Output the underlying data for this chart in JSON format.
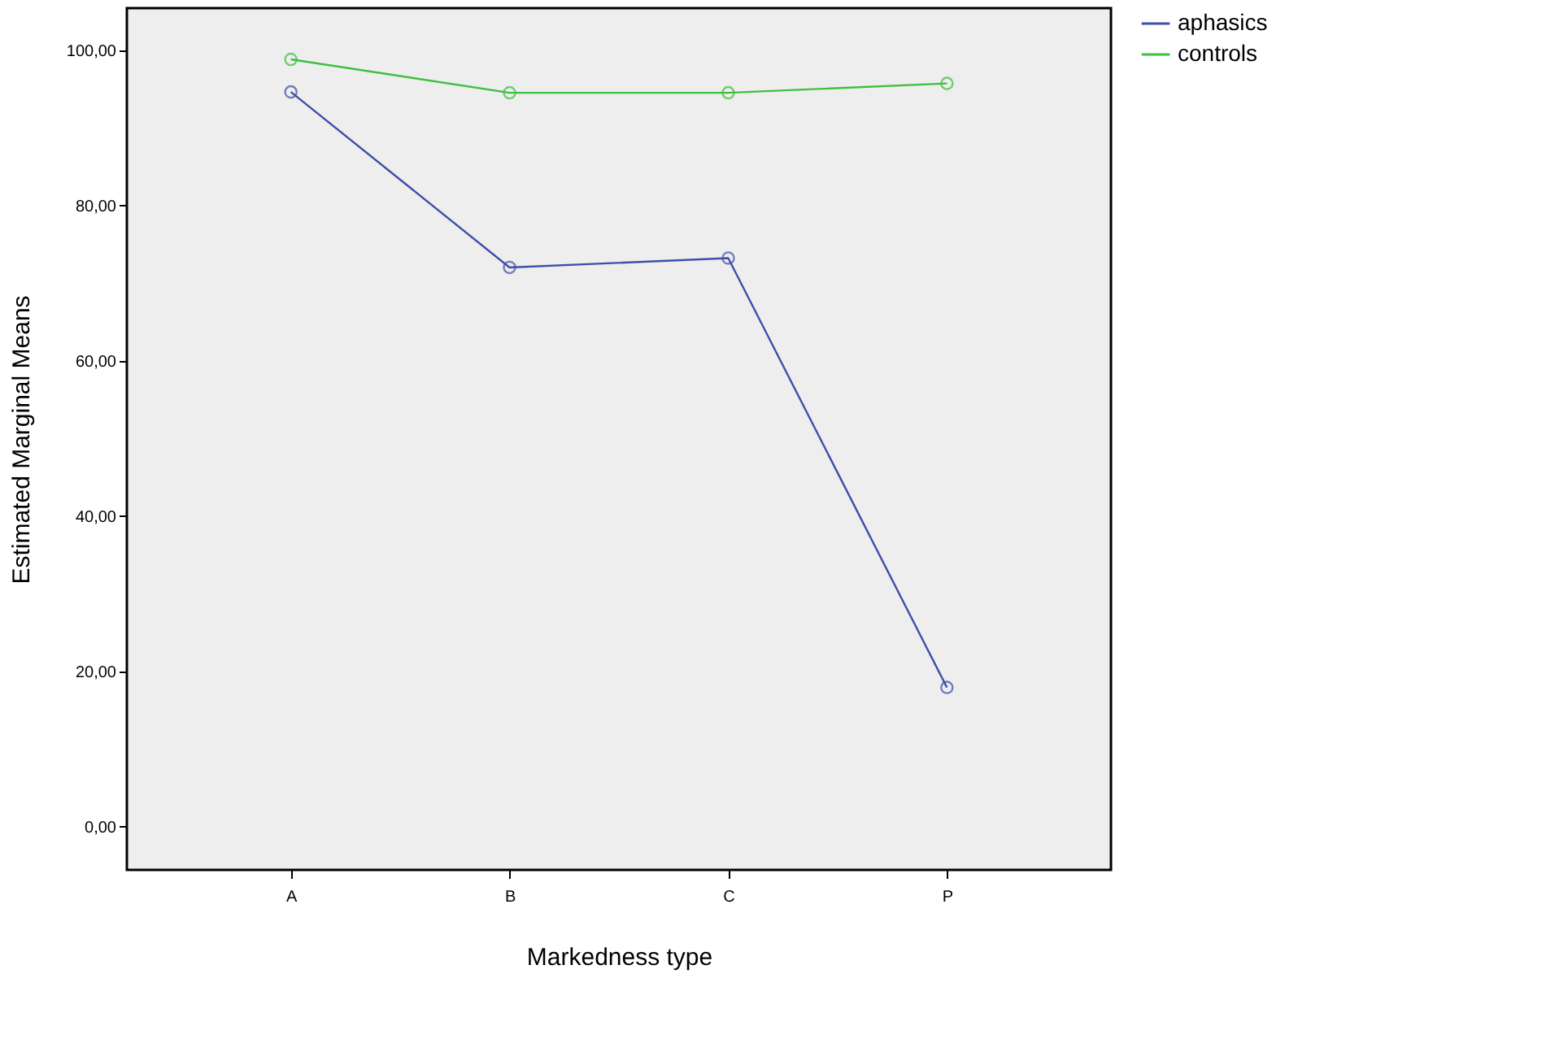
{
  "chart_data": {
    "type": "line",
    "xlabel": "Markedness type",
    "ylabel": "Estimated Marginal Means",
    "categories": [
      "A",
      "B",
      "C",
      "P"
    ],
    "series": [
      {
        "name": "aphasics",
        "color": "#3f4fa8",
        "values": [
          94.6,
          72.0,
          73.2,
          17.9
        ]
      },
      {
        "name": "controls",
        "color": "#3fbf3f",
        "values": [
          98.8,
          94.5,
          94.5,
          95.7
        ]
      }
    ],
    "ylim": [
      -5.6,
      105.4
    ],
    "yticks": [
      {
        "value": 0,
        "label": "0,00"
      },
      {
        "value": 20,
        "label": "20,00"
      },
      {
        "value": 40,
        "label": "40,00"
      },
      {
        "value": 60,
        "label": "60,00"
      },
      {
        "value": 80,
        "label": "80,00"
      },
      {
        "value": 100,
        "label": "100,00"
      }
    ],
    "grid": false,
    "legend": "right",
    "marker": "circle",
    "line_style": "solid"
  }
}
